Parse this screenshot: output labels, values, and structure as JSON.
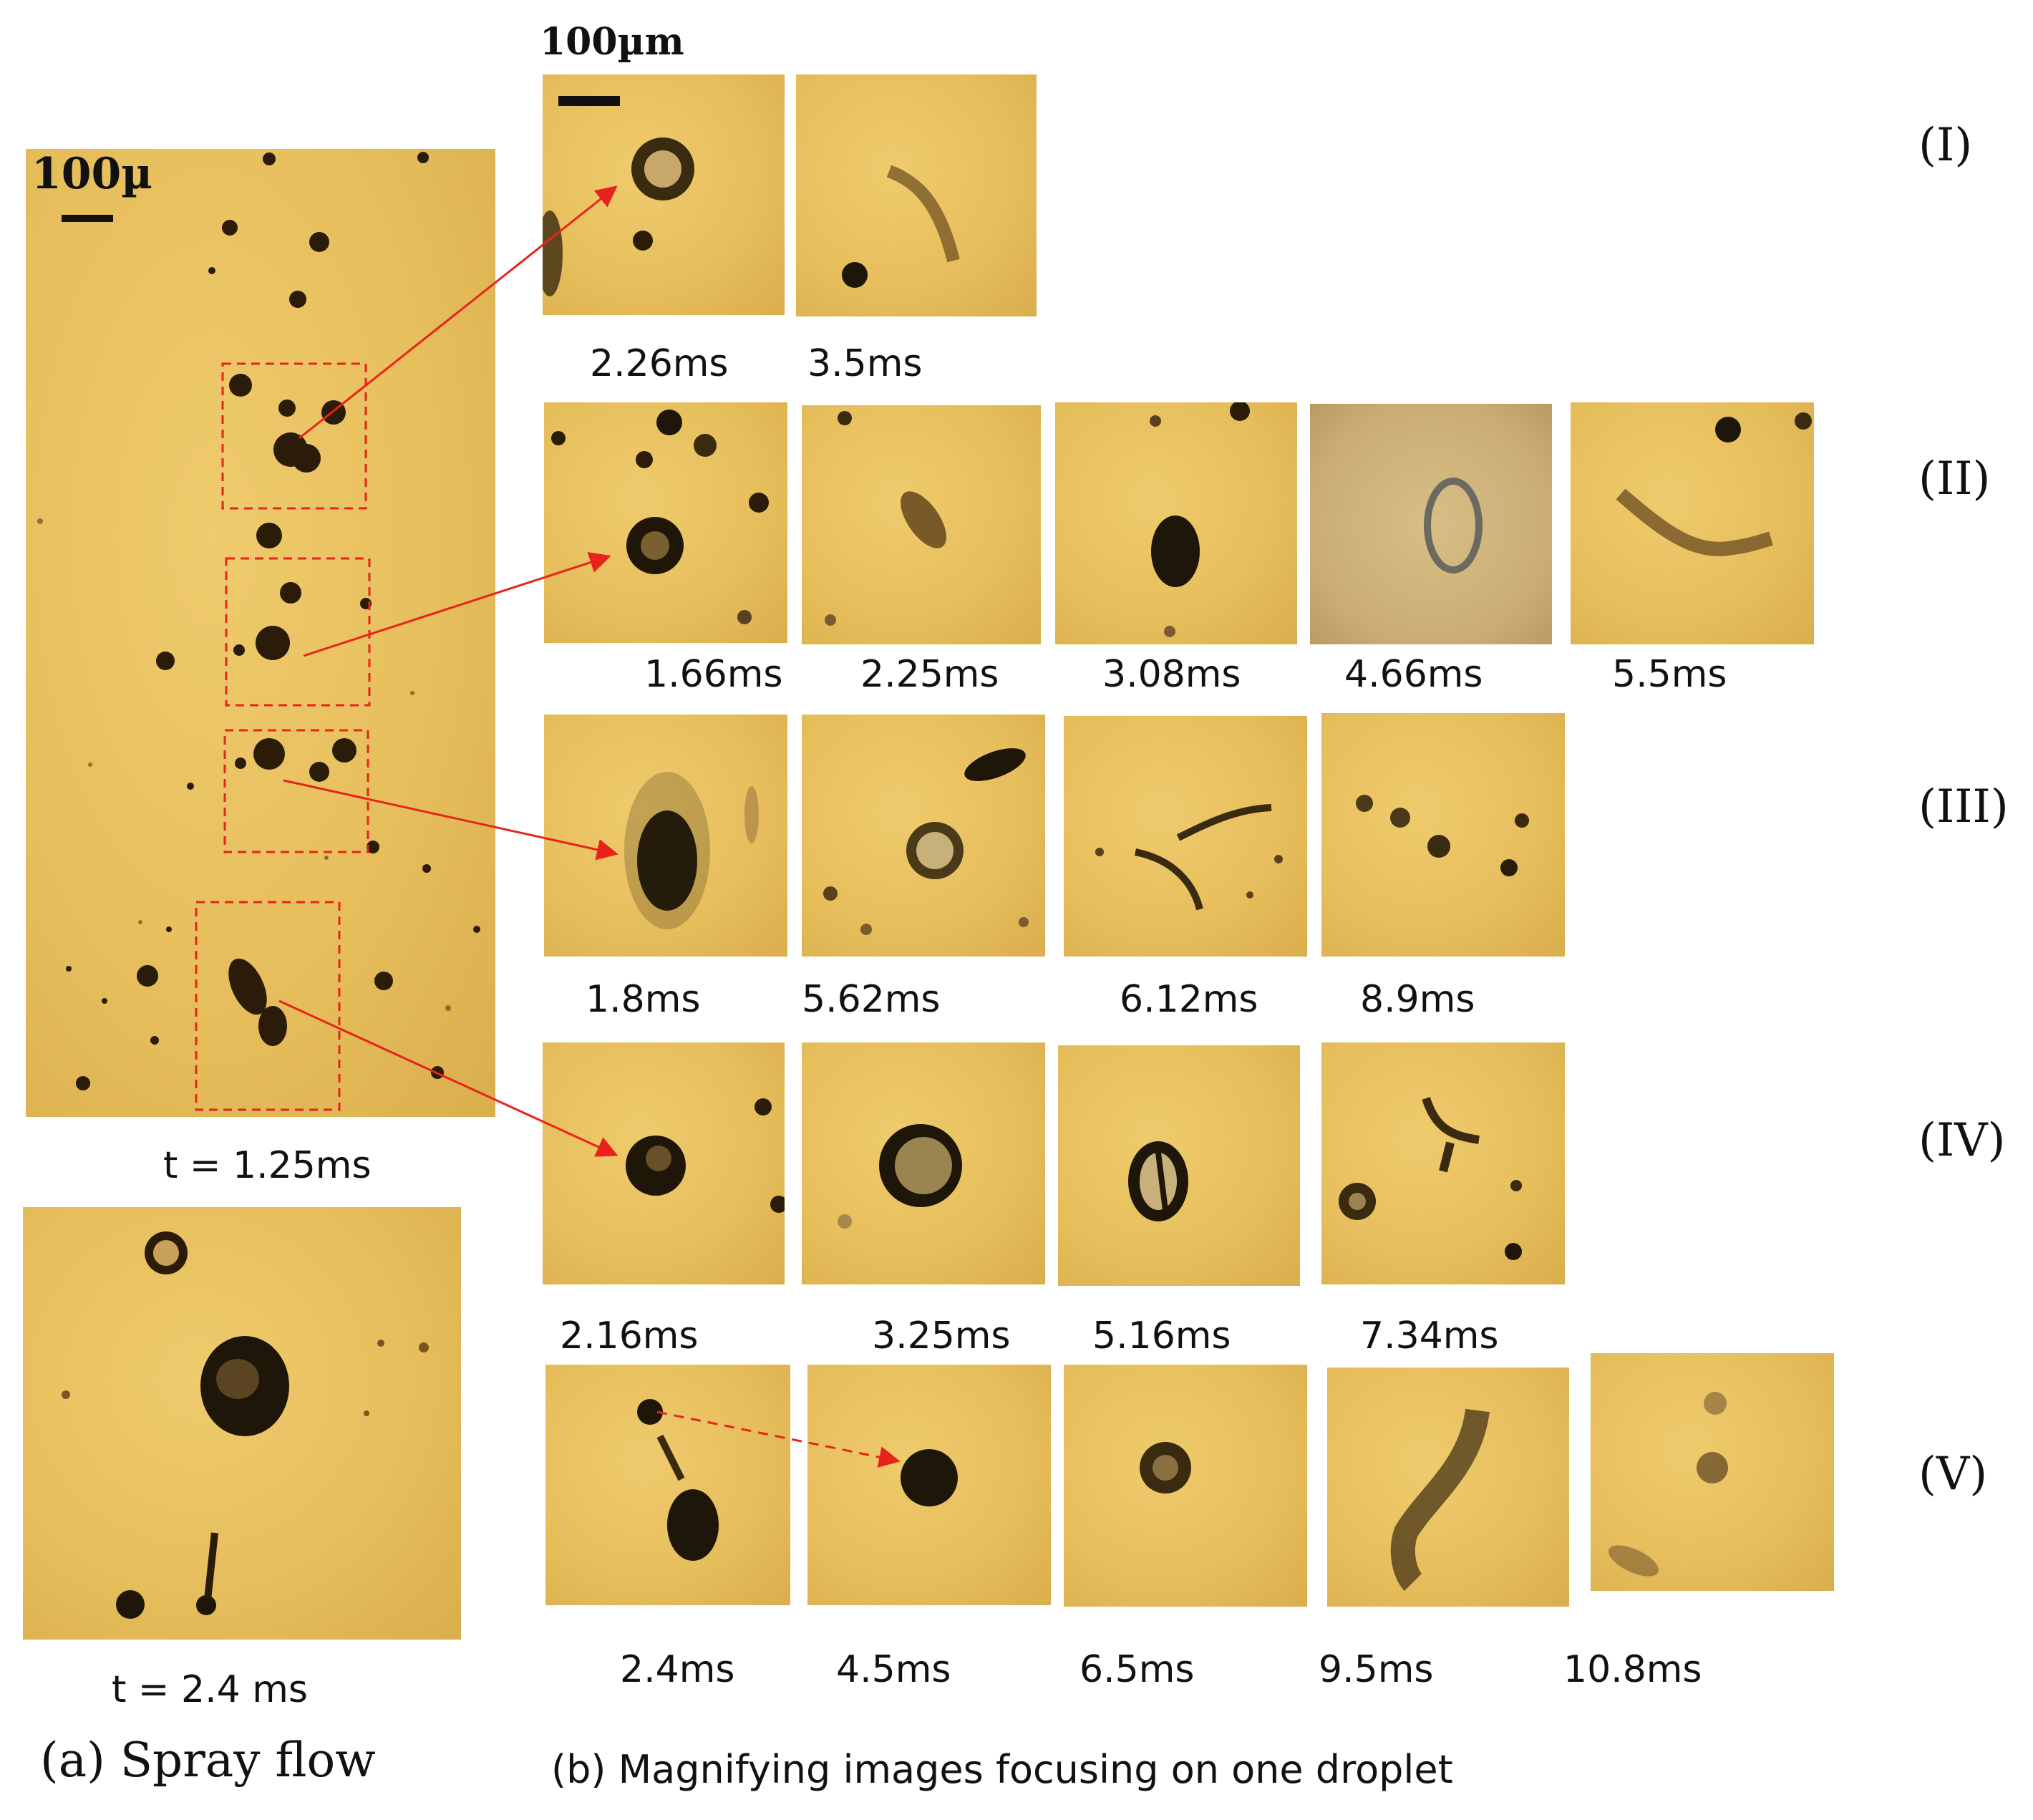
{
  "scale_bars": {
    "spray": "100µ",
    "magnified": "100µm"
  },
  "spray": {
    "t1": "t = 1.25ms",
    "t2": "t = 2.4 ms",
    "caption": "(a) Spray flow"
  },
  "magnified_caption": "(b) Magnifying  images focusing  on one  droplet",
  "rows": [
    {
      "label": "(I)",
      "times": [
        "2.26ms",
        "3.5ms"
      ]
    },
    {
      "label": "(II)",
      "times": [
        "1.66ms",
        "2.25ms",
        "3.08ms",
        "4.66ms",
        "5.5ms"
      ]
    },
    {
      "label": "(III)",
      "times": [
        "1.8ms",
        "5.62ms",
        "6.12ms",
        "8.9ms"
      ]
    },
    {
      "label": "(IV)",
      "times": [
        "2.16ms",
        "3.25ms",
        "5.16ms",
        "7.34ms"
      ]
    },
    {
      "label": "(V)",
      "times": [
        "2.4ms",
        "4.5ms",
        "6.5ms",
        "9.5ms",
        "10.8ms"
      ]
    }
  ],
  "colors": {
    "background": "#e6bd5b",
    "droplet": "#1e1608",
    "arrow": "#e8231b"
  }
}
